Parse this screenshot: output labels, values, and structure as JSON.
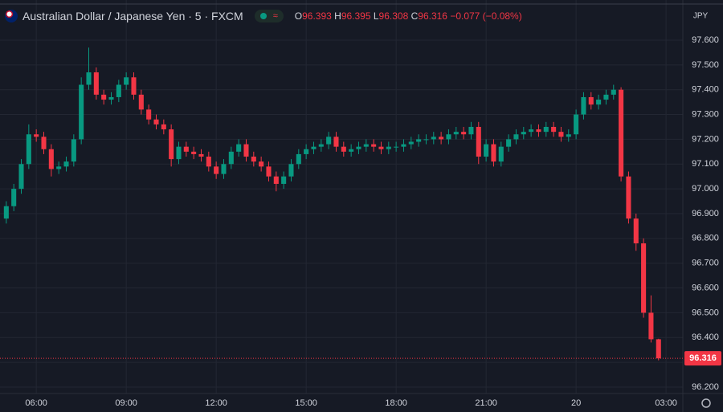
{
  "chart_data": {
    "type": "candlestick",
    "title": "Australian Dollar / Japanese Yen · 5 · FXCM",
    "legend": {
      "open_label": "O",
      "open": "96.393",
      "high_label": "H",
      "high": "96.395",
      "low_label": "L",
      "low": "96.308",
      "close_label": "C",
      "close": "96.316",
      "change": "−0.077 (−0.08%)"
    },
    "currency": "JPY",
    "up_color": "#089981",
    "down_color": "#f23645",
    "x": [
      5.0,
      5.25,
      5.5,
      5.75,
      6.0,
      6.25,
      6.5,
      6.75,
      7.0,
      7.25,
      7.5,
      7.75,
      8.0,
      8.25,
      8.5,
      8.75,
      9.0,
      9.25,
      9.5,
      9.75,
      10.0,
      10.25,
      10.5,
      10.75,
      11.0,
      11.25,
      11.5,
      11.75,
      12.0,
      12.25,
      12.5,
      12.75,
      13.0,
      13.25,
      13.5,
      13.75,
      14.0,
      14.25,
      14.5,
      14.75,
      15.0,
      15.25,
      15.5,
      15.75,
      16.0,
      16.25,
      16.5,
      16.75,
      17.0,
      17.25,
      17.5,
      17.75,
      18.0,
      18.25,
      18.5,
      18.75,
      19.0,
      19.25,
      19.5,
      19.75,
      20.0,
      20.25,
      20.5,
      20.75,
      21.0,
      21.25,
      21.5,
      21.75,
      22.0,
      22.25,
      22.5,
      22.75,
      23.0,
      23.25,
      23.5,
      23.75,
      24.0,
      24.25,
      24.5,
      24.75,
      25.0,
      25.25,
      25.5,
      25.75,
      26.0,
      26.25,
      26.5,
      26.75
    ],
    "open": [
      96.88,
      96.93,
      97.0,
      97.1,
      97.22,
      97.21,
      97.16,
      97.08,
      97.09,
      97.11,
      97.2,
      97.42,
      97.47,
      97.38,
      97.36,
      97.37,
      97.42,
      97.45,
      97.38,
      97.32,
      97.28,
      97.26,
      97.24,
      97.12,
      97.17,
      97.15,
      97.14,
      97.13,
      97.09,
      97.06,
      97.1,
      97.15,
      97.18,
      97.13,
      97.11,
      97.09,
      97.05,
      97.02,
      97.05,
      97.1,
      97.14,
      97.16,
      97.17,
      97.18,
      97.21,
      97.17,
      97.15,
      97.16,
      97.17,
      97.18,
      97.17,
      97.16,
      97.17,
      97.17,
      97.18,
      97.19,
      97.2,
      97.2,
      97.21,
      97.2,
      97.22,
      97.23,
      97.22,
      97.25,
      97.13,
      97.18,
      97.11,
      97.17,
      97.2,
      97.22,
      97.23,
      97.24,
      97.23,
      97.25,
      97.23,
      97.21,
      97.22,
      97.3,
      97.37,
      97.34,
      97.36,
      97.38,
      97.4,
      97.05,
      96.88,
      96.78,
      96.5,
      96.393
    ],
    "high": [
      96.95,
      97.02,
      97.12,
      97.26,
      97.24,
      97.23,
      97.18,
      97.11,
      97.13,
      97.22,
      97.45,
      97.57,
      97.49,
      97.4,
      97.39,
      97.44,
      97.47,
      97.47,
      97.4,
      97.34,
      97.3,
      97.28,
      97.26,
      97.19,
      97.19,
      97.17,
      97.16,
      97.15,
      97.11,
      97.12,
      97.17,
      97.2,
      97.2,
      97.15,
      97.13,
      97.11,
      97.07,
      97.07,
      97.12,
      97.16,
      97.18,
      97.19,
      97.2,
      97.23,
      97.23,
      97.19,
      97.18,
      97.19,
      97.2,
      97.2,
      97.19,
      97.19,
      97.19,
      97.2,
      97.21,
      97.22,
      97.22,
      97.23,
      97.23,
      97.24,
      97.25,
      97.25,
      97.27,
      97.27,
      97.2,
      97.2,
      97.19,
      97.22,
      97.24,
      97.25,
      97.26,
      97.26,
      97.27,
      97.27,
      97.25,
      97.24,
      97.32,
      97.39,
      97.39,
      97.38,
      97.4,
      97.42,
      97.41,
      97.07,
      96.9,
      96.8,
      96.57,
      96.395
    ],
    "low": [
      96.86,
      96.91,
      96.98,
      97.08,
      97.19,
      97.14,
      97.05,
      97.06,
      97.07,
      97.09,
      97.18,
      97.4,
      97.36,
      97.34,
      97.34,
      97.35,
      97.4,
      97.36,
      97.3,
      97.26,
      97.24,
      97.22,
      97.09,
      97.1,
      97.13,
      97.12,
      97.11,
      97.07,
      97.04,
      97.04,
      97.08,
      97.13,
      97.11,
      97.09,
      97.07,
      97.03,
      96.99,
      97.0,
      97.03,
      97.08,
      97.12,
      97.14,
      97.15,
      97.16,
      97.15,
      97.13,
      97.13,
      97.14,
      97.15,
      97.15,
      97.14,
      97.14,
      97.15,
      97.15,
      97.16,
      97.17,
      97.18,
      97.18,
      97.18,
      97.18,
      97.2,
      97.2,
      97.2,
      97.1,
      97.11,
      97.09,
      97.09,
      97.15,
      97.18,
      97.2,
      97.21,
      97.21,
      97.21,
      97.21,
      97.19,
      97.19,
      97.2,
      97.28,
      97.32,
      97.32,
      97.34,
      97.36,
      97.03,
      96.86,
      96.75,
      96.48,
      96.38,
      96.308
    ],
    "close": [
      96.93,
      97.0,
      97.1,
      97.22,
      97.21,
      97.16,
      97.08,
      97.09,
      97.11,
      97.2,
      97.42,
      97.47,
      97.38,
      97.36,
      97.37,
      97.42,
      97.45,
      97.38,
      97.32,
      97.28,
      97.26,
      97.24,
      97.12,
      97.17,
      97.15,
      97.14,
      97.13,
      97.09,
      97.06,
      97.1,
      97.15,
      97.18,
      97.13,
      97.11,
      97.09,
      97.05,
      97.02,
      97.05,
      97.1,
      97.14,
      97.16,
      97.17,
      97.18,
      97.21,
      97.17,
      97.15,
      97.16,
      97.17,
      97.18,
      97.17,
      97.16,
      97.17,
      97.17,
      97.18,
      97.19,
      97.2,
      97.2,
      97.21,
      97.2,
      97.22,
      97.23,
      97.22,
      97.25,
      97.13,
      97.18,
      97.11,
      97.17,
      97.2,
      97.22,
      97.23,
      97.24,
      97.23,
      97.25,
      97.23,
      97.21,
      97.22,
      97.3,
      97.37,
      97.34,
      97.36,
      97.38,
      97.4,
      97.05,
      96.88,
      96.78,
      96.5,
      96.393,
      96.316
    ],
    "last_price": {
      "value": 96.316,
      "label": "96.316"
    },
    "xlim": [
      4.79,
      27.56
    ],
    "ylim": [
      96.174,
      97.762
    ],
    "xticks": [
      {
        "value": 6,
        "label": "06:00"
      },
      {
        "value": 9,
        "label": "09:00"
      },
      {
        "value": 12,
        "label": "12:00"
      },
      {
        "value": 15,
        "label": "15:00"
      },
      {
        "value": 18,
        "label": "18:00"
      },
      {
        "value": 21,
        "label": "21:00"
      },
      {
        "value": 24,
        "label": "20"
      },
      {
        "value": 27,
        "label": "03:00"
      }
    ],
    "yticks": [
      {
        "value": 96.2,
        "label": "96.200"
      },
      {
        "value": 96.3,
        "label": "96.300"
      },
      {
        "value": 96.4,
        "label": "96.400"
      },
      {
        "value": 96.5,
        "label": "96.500"
      },
      {
        "value": 96.6,
        "label": "96.600"
      },
      {
        "value": 96.7,
        "label": "96.700"
      },
      {
        "value": 96.8,
        "label": "96.800"
      },
      {
        "value": 96.9,
        "label": "96.900"
      },
      {
        "value": 97.0,
        "label": "97.000"
      },
      {
        "value": 97.1,
        "label": "97.100"
      },
      {
        "value": 97.2,
        "label": "97.200"
      },
      {
        "value": 97.3,
        "label": "97.300"
      },
      {
        "value": 97.4,
        "label": "97.400"
      },
      {
        "value": 97.5,
        "label": "97.500"
      },
      {
        "value": 97.6,
        "label": "97.600"
      }
    ],
    "grid": true
  }
}
